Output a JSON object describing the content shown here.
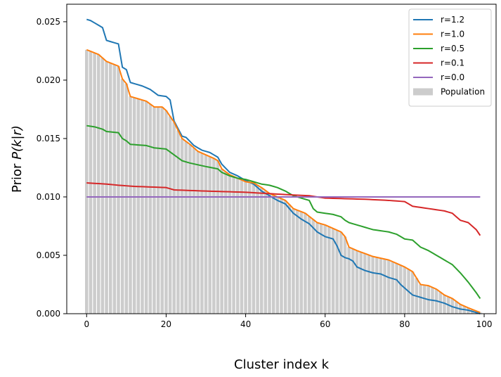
{
  "chart_data": {
    "type": "line",
    "title": "",
    "xlabel": "Cluster index k",
    "ylabel_prefix": "Prior ",
    "ylabel_math": "P(k|r)",
    "xlim": [
      -5,
      103
    ],
    "ylim": [
      0,
      0.0265
    ],
    "xticks": [
      0,
      20,
      40,
      60,
      80,
      100
    ],
    "xtick_labels": [
      "0",
      "20",
      "40",
      "60",
      "80",
      "100"
    ],
    "yticks": [
      0,
      0.005,
      0.01,
      0.015,
      0.02,
      0.025
    ],
    "ytick_labels": [
      "0.000",
      "0.005",
      "0.010",
      "0.015",
      "0.020",
      "0.025"
    ],
    "legend_position": "top-right",
    "population": {
      "name": "Population",
      "color": "#cccccc",
      "anchors": [
        [
          0,
          0.0226
        ],
        [
          3,
          0.0222
        ],
        [
          5,
          0.0216
        ],
        [
          8,
          0.0212
        ],
        [
          9,
          0.0201
        ],
        [
          10,
          0.0197
        ],
        [
          11,
          0.0186
        ],
        [
          15,
          0.0182
        ],
        [
          17,
          0.0177
        ],
        [
          19,
          0.0177
        ],
        [
          20,
          0.0174
        ],
        [
          22,
          0.0164
        ],
        [
          24,
          0.015
        ],
        [
          26,
          0.0145
        ],
        [
          28,
          0.0139
        ],
        [
          30,
          0.0136
        ],
        [
          32,
          0.0133
        ],
        [
          33,
          0.0131
        ],
        [
          34,
          0.0124
        ],
        [
          36,
          0.0119
        ],
        [
          38,
          0.0116
        ],
        [
          40,
          0.0113
        ],
        [
          42,
          0.0112
        ],
        [
          44,
          0.0108
        ],
        [
          46,
          0.0103
        ],
        [
          48,
          0.01
        ],
        [
          50,
          0.0097
        ],
        [
          52,
          0.009
        ],
        [
          55,
          0.0086
        ],
        [
          58,
          0.0078
        ],
        [
          60,
          0.0076
        ],
        [
          62,
          0.0073
        ],
        [
          64,
          0.007
        ],
        [
          65,
          0.0066
        ],
        [
          66,
          0.0057
        ],
        [
          68,
          0.0054
        ],
        [
          72,
          0.0049
        ],
        [
          76,
          0.0046
        ],
        [
          78,
          0.0043
        ],
        [
          80,
          0.004
        ],
        [
          82,
          0.0036
        ],
        [
          84,
          0.0025
        ],
        [
          86,
          0.0024
        ],
        [
          88,
          0.0021
        ],
        [
          90,
          0.0016
        ],
        [
          92,
          0.0013
        ],
        [
          94,
          0.0008
        ],
        [
          96,
          0.0005
        ],
        [
          99,
          0.0001
        ]
      ]
    },
    "series": [
      {
        "name": "r=1.2",
        "color": "#1f77b4",
        "anchors": [
          [
            0,
            0.0252
          ],
          [
            1,
            0.0251
          ],
          [
            2,
            0.0249
          ],
          [
            3,
            0.0247
          ],
          [
            4,
            0.0245
          ],
          [
            5,
            0.0234
          ],
          [
            6,
            0.0233
          ],
          [
            7,
            0.0232
          ],
          [
            8,
            0.0231
          ],
          [
            9,
            0.0211
          ],
          [
            10,
            0.0209
          ],
          [
            11,
            0.0198
          ],
          [
            12,
            0.0197
          ],
          [
            14,
            0.0195
          ],
          [
            16,
            0.0192
          ],
          [
            18,
            0.0187
          ],
          [
            20,
            0.0186
          ],
          [
            21,
            0.0183
          ],
          [
            22,
            0.0165
          ],
          [
            24,
            0.0152
          ],
          [
            25,
            0.0151
          ],
          [
            27,
            0.0144
          ],
          [
            29,
            0.014
          ],
          [
            31,
            0.0138
          ],
          [
            33,
            0.0134
          ],
          [
            34,
            0.0128
          ],
          [
            36,
            0.0121
          ],
          [
            38,
            0.0118
          ],
          [
            40,
            0.0114
          ],
          [
            42,
            0.0111
          ],
          [
            44,
            0.0105
          ],
          [
            46,
            0.0101
          ],
          [
            48,
            0.0097
          ],
          [
            50,
            0.0094
          ],
          [
            52,
            0.0086
          ],
          [
            54,
            0.0081
          ],
          [
            56,
            0.0077
          ],
          [
            58,
            0.007
          ],
          [
            60,
            0.0066
          ],
          [
            62,
            0.0064
          ],
          [
            63,
            0.0058
          ],
          [
            64,
            0.005
          ],
          [
            65,
            0.0048
          ],
          [
            66,
            0.0047
          ],
          [
            67,
            0.0045
          ],
          [
            68,
            0.004
          ],
          [
            70,
            0.0037
          ],
          [
            72,
            0.0035
          ],
          [
            74,
            0.0034
          ],
          [
            76,
            0.0031
          ],
          [
            78,
            0.0029
          ],
          [
            79,
            0.0025
          ],
          [
            80,
            0.0022
          ],
          [
            82,
            0.0016
          ],
          [
            84,
            0.0014
          ],
          [
            86,
            0.0012
          ],
          [
            88,
            0.0011
          ],
          [
            90,
            0.0009
          ],
          [
            92,
            0.0006
          ],
          [
            94,
            0.0004
          ],
          [
            96,
            0.0003
          ],
          [
            99,
            0.0
          ]
        ]
      },
      {
        "name": "r=1.0",
        "color": "#ff7f0e",
        "anchors": [
          [
            0,
            0.0226
          ],
          [
            3,
            0.0222
          ],
          [
            5,
            0.0216
          ],
          [
            8,
            0.0212
          ],
          [
            9,
            0.0201
          ],
          [
            10,
            0.0197
          ],
          [
            11,
            0.0186
          ],
          [
            15,
            0.0182
          ],
          [
            17,
            0.0177
          ],
          [
            19,
            0.0177
          ],
          [
            20,
            0.0174
          ],
          [
            22,
            0.0164
          ],
          [
            24,
            0.015
          ],
          [
            26,
            0.0145
          ],
          [
            28,
            0.0139
          ],
          [
            30,
            0.0136
          ],
          [
            32,
            0.0133
          ],
          [
            33,
            0.0131
          ],
          [
            34,
            0.0124
          ],
          [
            36,
            0.0119
          ],
          [
            38,
            0.0116
          ],
          [
            40,
            0.0113
          ],
          [
            42,
            0.0112
          ],
          [
            44,
            0.0108
          ],
          [
            46,
            0.0103
          ],
          [
            48,
            0.01
          ],
          [
            50,
            0.0097
          ],
          [
            52,
            0.009
          ],
          [
            55,
            0.0086
          ],
          [
            58,
            0.0078
          ],
          [
            60,
            0.0076
          ],
          [
            62,
            0.0073
          ],
          [
            64,
            0.007
          ],
          [
            65,
            0.0066
          ],
          [
            66,
            0.0057
          ],
          [
            68,
            0.0054
          ],
          [
            72,
            0.0049
          ],
          [
            76,
            0.0046
          ],
          [
            78,
            0.0043
          ],
          [
            80,
            0.004
          ],
          [
            82,
            0.0036
          ],
          [
            84,
            0.0025
          ],
          [
            86,
            0.0024
          ],
          [
            88,
            0.0021
          ],
          [
            90,
            0.0016
          ],
          [
            92,
            0.0013
          ],
          [
            94,
            0.0008
          ],
          [
            96,
            0.0005
          ],
          [
            99,
            0.0001
          ]
        ]
      },
      {
        "name": "r=0.5",
        "color": "#2ca02c",
        "anchors": [
          [
            0,
            0.0161
          ],
          [
            2,
            0.016
          ],
          [
            4,
            0.0158
          ],
          [
            5,
            0.0156
          ],
          [
            8,
            0.0155
          ],
          [
            9,
            0.015
          ],
          [
            10,
            0.0148
          ],
          [
            11,
            0.0145
          ],
          [
            15,
            0.0144
          ],
          [
            17,
            0.0142
          ],
          [
            20,
            0.0141
          ],
          [
            22,
            0.0136
          ],
          [
            24,
            0.0131
          ],
          [
            26,
            0.0129
          ],
          [
            30,
            0.0126
          ],
          [
            33,
            0.0124
          ],
          [
            34,
            0.0121
          ],
          [
            36,
            0.0118
          ],
          [
            38,
            0.0116
          ],
          [
            40,
            0.0115
          ],
          [
            42,
            0.0113
          ],
          [
            44,
            0.0111
          ],
          [
            46,
            0.011
          ],
          [
            48,
            0.0108
          ],
          [
            50,
            0.0105
          ],
          [
            52,
            0.0101
          ],
          [
            55,
            0.0098
          ],
          [
            56,
            0.0097
          ],
          [
            57,
            0.009
          ],
          [
            58,
            0.0087
          ],
          [
            62,
            0.0085
          ],
          [
            64,
            0.0083
          ],
          [
            65,
            0.008
          ],
          [
            66,
            0.0078
          ],
          [
            68,
            0.0076
          ],
          [
            72,
            0.0072
          ],
          [
            76,
            0.007
          ],
          [
            78,
            0.0068
          ],
          [
            80,
            0.0064
          ],
          [
            82,
            0.0063
          ],
          [
            84,
            0.0057
          ],
          [
            86,
            0.0054
          ],
          [
            88,
            0.005
          ],
          [
            90,
            0.0046
          ],
          [
            92,
            0.0042
          ],
          [
            94,
            0.0035
          ],
          [
            96,
            0.0027
          ],
          [
            98,
            0.0018
          ],
          [
            99,
            0.0013
          ]
        ]
      },
      {
        "name": "r=0.1",
        "color": "#d62728",
        "anchors": [
          [
            0,
            0.0112
          ],
          [
            5,
            0.0111
          ],
          [
            8,
            0.011
          ],
          [
            12,
            0.0109
          ],
          [
            20,
            0.0108
          ],
          [
            22,
            0.0106
          ],
          [
            30,
            0.0105
          ],
          [
            40,
            0.0104
          ],
          [
            50,
            0.0102
          ],
          [
            56,
            0.0101
          ],
          [
            60,
            0.0099
          ],
          [
            70,
            0.0098
          ],
          [
            76,
            0.0097
          ],
          [
            80,
            0.0096
          ],
          [
            82,
            0.0092
          ],
          [
            84,
            0.0091
          ],
          [
            86,
            0.009
          ],
          [
            88,
            0.0089
          ],
          [
            90,
            0.0088
          ],
          [
            92,
            0.0086
          ],
          [
            94,
            0.008
          ],
          [
            96,
            0.0078
          ],
          [
            98,
            0.0072
          ],
          [
            99,
            0.0067
          ]
        ]
      },
      {
        "name": "r=0.0",
        "color": "#9467bd",
        "anchors": [
          [
            0,
            0.01
          ],
          [
            99,
            0.01
          ]
        ]
      }
    ]
  }
}
